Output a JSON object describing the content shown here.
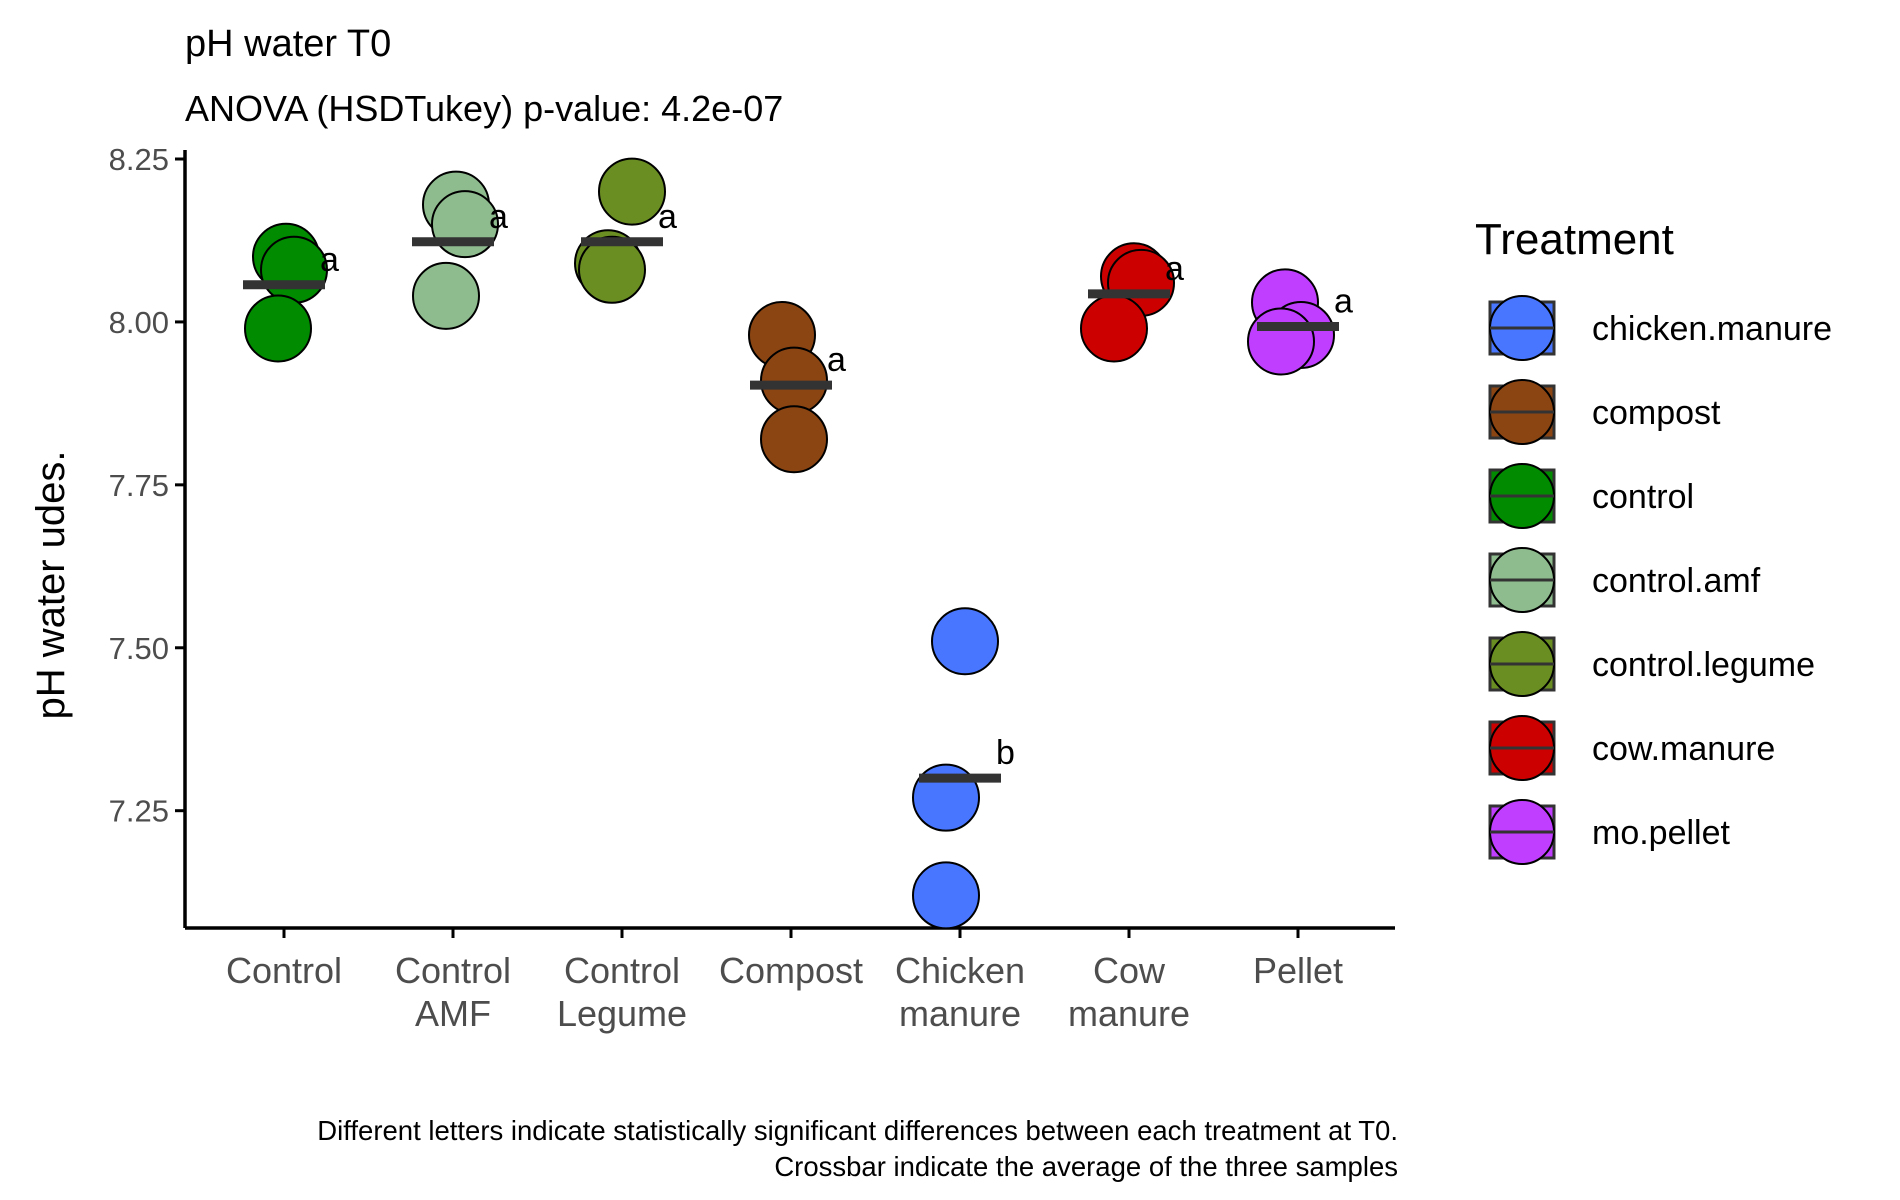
{
  "chart_data": {
    "type": "scatter",
    "title": "pH water T0",
    "subtitle": "ANOVA (HSDTukey) p-value: 4.2e-07",
    "xlabel": "",
    "ylabel": "pH water udes.",
    "ylim": [
      7.07,
      8.25
    ],
    "yticks": [
      "7.25",
      "7.50",
      "7.75",
      "8.00",
      "8.25"
    ],
    "grid": false,
    "legend_position": "right",
    "legend_title": "Treatment",
    "caption": [
      "Different letters indicate statistically significant differences between each treatment at T0.",
      "Crossbar indicate the average of the three samples"
    ],
    "categories": [
      {
        "label": [
          "Control"
        ],
        "treatment": "control",
        "color": "#008b00",
        "mean": 8.057,
        "letter": "a",
        "values": [
          8.1,
          8.08,
          7.99
        ]
      },
      {
        "label": [
          "Control",
          "AMF"
        ],
        "treatment": "control.amf",
        "color": "#8fbc8f",
        "mean": 8.123,
        "letter": "a",
        "values": [
          8.18,
          8.15,
          8.04
        ]
      },
      {
        "label": [
          "Control",
          "Legume"
        ],
        "treatment": "control.legume",
        "color": "#6b8e23",
        "mean": 8.123,
        "letter": "a",
        "values": [
          8.2,
          8.09,
          8.08
        ]
      },
      {
        "label": [
          "Compost"
        ],
        "treatment": "compost",
        "color": "#8b4513",
        "mean": 7.903,
        "letter": "a",
        "values": [
          7.98,
          7.91,
          7.82
        ]
      },
      {
        "label": [
          "Chicken",
          "manure"
        ],
        "treatment": "chicken.manure",
        "color": "#4876ff",
        "mean": 7.3,
        "letter": "b",
        "values": [
          7.51,
          7.27,
          7.12
        ]
      },
      {
        "label": [
          "Cow",
          "manure"
        ],
        "treatment": "cow.manure",
        "color": "#cd0000",
        "mean": 8.043,
        "letter": "a",
        "values": [
          8.07,
          8.06,
          7.99
        ]
      },
      {
        "label": [
          "Pellet"
        ],
        "treatment": "mo.pellet",
        "color": "#bf3eff",
        "mean": 7.993,
        "letter": "a",
        "values": [
          8.03,
          7.98,
          7.97
        ]
      }
    ],
    "legend": [
      {
        "name": "chicken.manure",
        "color": "#4876ff"
      },
      {
        "name": "compost",
        "color": "#8b4513"
      },
      {
        "name": "control",
        "color": "#008b00"
      },
      {
        "name": "control.amf",
        "color": "#8fbc8f"
      },
      {
        "name": "control.legume",
        "color": "#6b8e23"
      },
      {
        "name": "cow.manure",
        "color": "#cd0000"
      },
      {
        "name": "mo.pellet",
        "color": "#bf3eff"
      }
    ]
  }
}
